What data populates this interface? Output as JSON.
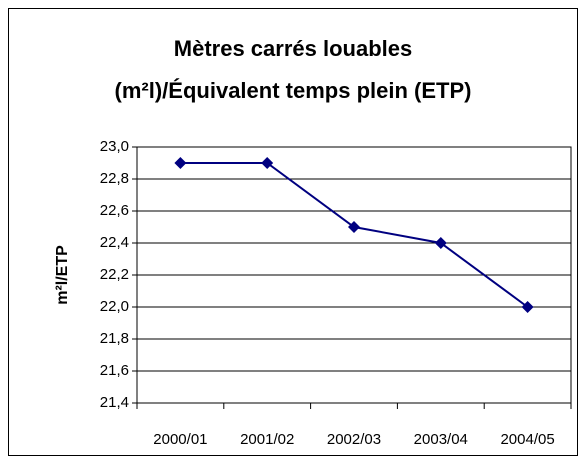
{
  "chart_data": {
    "type": "line",
    "title": [
      "Mètres carrés louables",
      "(m²l)/Équivalent temps plein (ETP)"
    ],
    "y_label": "m²l/ETP",
    "categories": [
      "2000/01",
      "2001/02",
      "2002/03",
      "2003/04",
      "2004/05"
    ],
    "values": [
      22.9,
      22.9,
      22.5,
      22.4,
      22.0
    ],
    "color": "#000080",
    "ylim": [
      21.4,
      23.0
    ],
    "yticks": [
      {
        "value": 21.4,
        "label": "21,4"
      },
      {
        "value": 21.6,
        "label": "21,6"
      },
      {
        "value": 21.8,
        "label": "21,8"
      },
      {
        "value": 22.0,
        "label": "22,0"
      },
      {
        "value": 22.2,
        "label": "22,2"
      },
      {
        "value": 22.4,
        "label": "22,4"
      },
      {
        "value": 22.6,
        "label": "22,6"
      },
      {
        "value": 22.8,
        "label": "22,8"
      },
      {
        "value": 23.0,
        "label": "23,0"
      }
    ],
    "grid": true
  }
}
